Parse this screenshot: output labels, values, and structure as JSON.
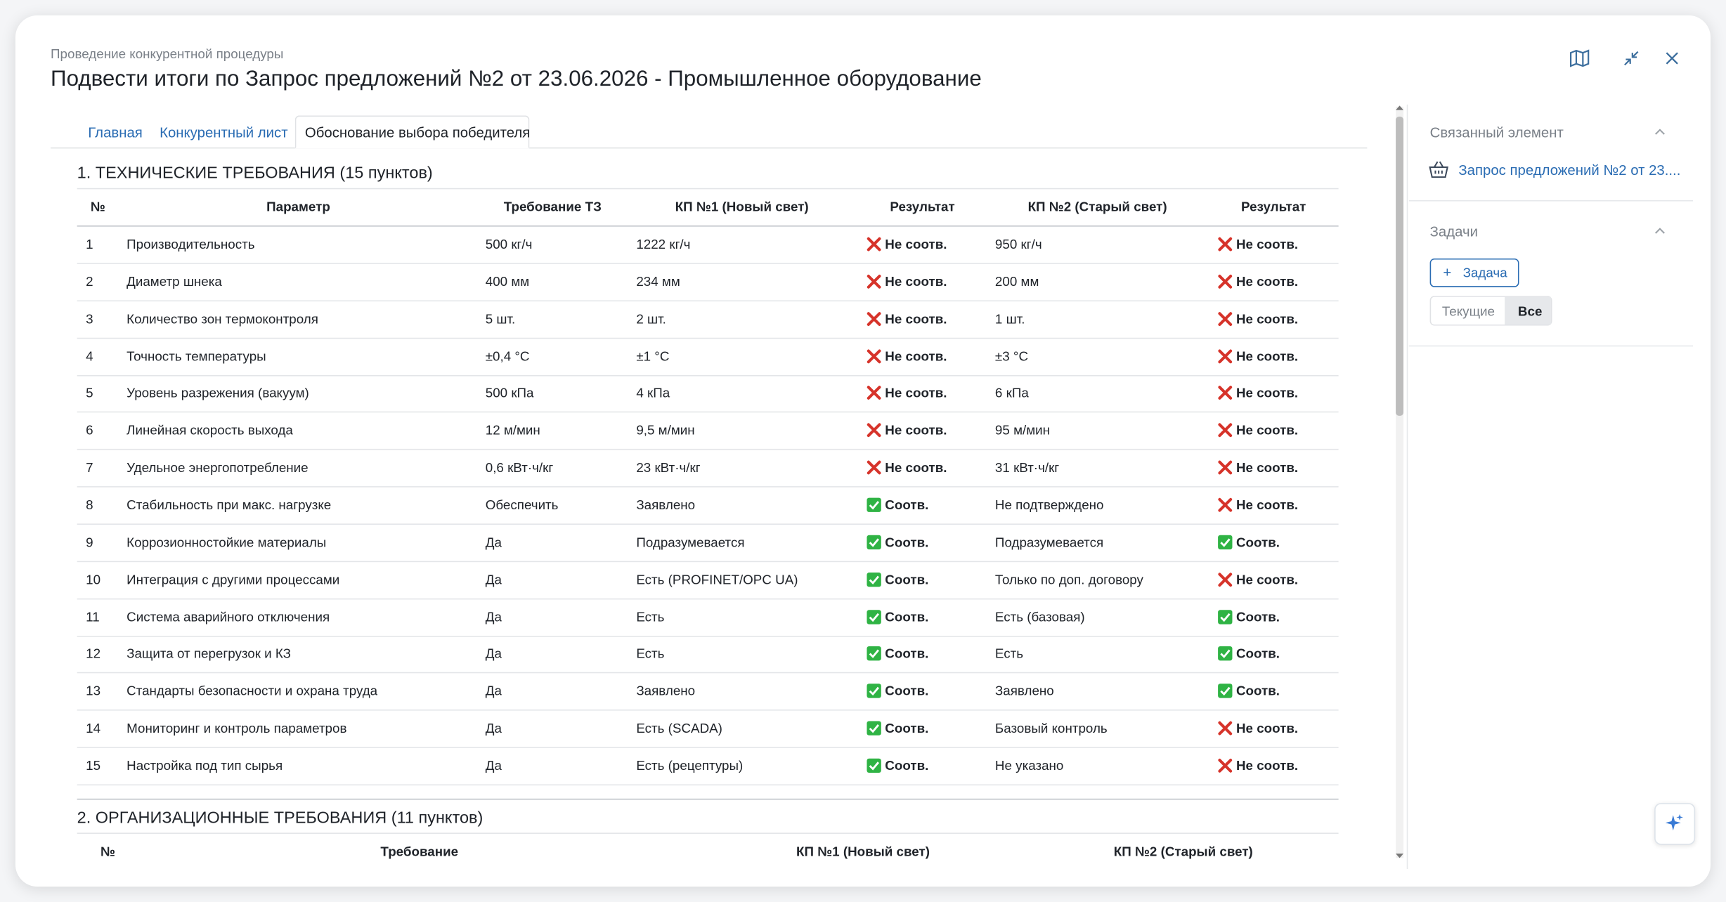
{
  "header": {
    "breadcrumb": "Проведение конкурентной процедуры",
    "title": "Подвести итоги по Запрос предложений №2 от 23.06.2026 - Промышленное оборудование"
  },
  "tabs": [
    "Главная",
    "Конкурентный лист",
    "Обоснование выбора победителя"
  ],
  "section1": {
    "title": "1. ТЕХНИЧЕСКИЕ ТРЕБОВАНИЯ (15 пунктов)",
    "columns": [
      "№",
      "Параметр",
      "Требование ТЗ",
      "КП №1 (Новый свет)",
      "Результат",
      "КП №2 (Старый свет)",
      "Результат"
    ],
    "rows": [
      [
        1,
        "Производительность",
        "500 кг/ч",
        "1222 кг/ч",
        "Не соотв.",
        "950 кг/ч",
        "Не соотв."
      ],
      [
        2,
        "Диаметр шнека",
        "400 мм",
        "234 мм",
        "Не соотв.",
        "200 мм",
        "Не соотв."
      ],
      [
        3,
        "Количество зон термоконтроля",
        "5 шт.",
        "2 шт.",
        "Не соотв.",
        "1 шт.",
        "Не соотв."
      ],
      [
        4,
        "Точность температуры",
        "±0,4 °C",
        "±1 °C",
        "Не соотв.",
        "±3 °C",
        "Не соотв."
      ],
      [
        5,
        "Уровень разрежения (вакуум)",
        "500 кПа",
        "4 кПа",
        "Не соотв.",
        "6 кПа",
        "Не соотв."
      ],
      [
        6,
        "Линейная скорость выхода",
        "12 м/мин",
        "9,5 м/мин",
        "Не соотв.",
        "95 м/мин",
        "Не соотв."
      ],
      [
        7,
        "Удельное энергопотребление",
        "0,6 кВт·ч/кг",
        "23 кВт·ч/кг",
        "Не соотв.",
        "31 кВт·ч/кг",
        "Не соотв."
      ],
      [
        8,
        "Стабильность при макс. нагрузке",
        "Обеспечить",
        "Заявлено",
        "Соотв.",
        "Не подтверждено",
        "Не соотв."
      ],
      [
        9,
        "Коррозионностойкие материалы",
        "Да",
        "Подразумевается",
        "Соотв.",
        "Подразумевается",
        "Соотв."
      ],
      [
        10,
        "Интеграция с другими процессами",
        "Да",
        "Есть (PROFINET/OPC UA)",
        "Соотв.",
        "Только по доп. договору",
        "Не соотв."
      ],
      [
        11,
        "Система аварийного отключения",
        "Да",
        "Есть",
        "Соотв.",
        "Есть (базовая)",
        "Соотв."
      ],
      [
        12,
        "Защита от перегрузок и КЗ",
        "Да",
        "Есть",
        "Соотв.",
        "Есть",
        "Соотв."
      ],
      [
        13,
        "Стандарты безопасности и охрана труда",
        "Да",
        "Заявлено",
        "Соотв.",
        "Заявлено",
        "Соотв."
      ],
      [
        14,
        "Мониторинг и контроль параметров",
        "Да",
        "Есть (SCADA)",
        "Соотв.",
        "Базовый контроль",
        "Не соотв."
      ],
      [
        15,
        "Настройка под тип сырья",
        "Да",
        "Есть (рецептуры)",
        "Соотв.",
        "Не указано",
        "Не соотв."
      ]
    ]
  },
  "section2": {
    "title": "2. ОРГАНИЗАЦИОННЫЕ ТРЕБОВАНИЯ (11 пунктов)",
    "columns": [
      "№",
      "Требование",
      "КП №1 (Новый свет)",
      "КП №2 (Старый свет)"
    ]
  },
  "sidebar": {
    "related_title": "Связанный элемент",
    "related_link": "Запрос предложений №2 от 23....",
    "tasks_title": "Задачи",
    "add_task": "Задача",
    "filters": [
      "Текущие",
      "Все"
    ]
  }
}
